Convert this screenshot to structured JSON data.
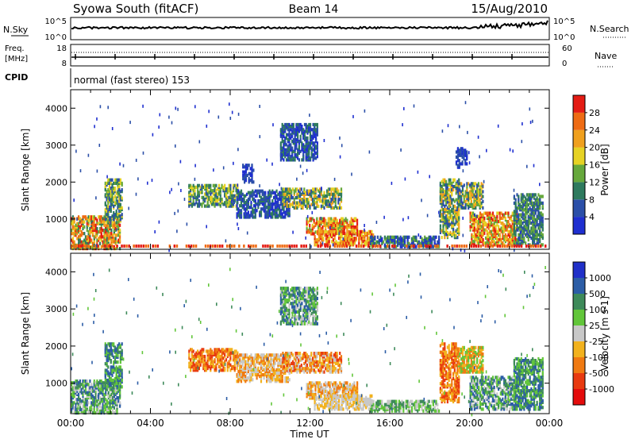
{
  "header": {
    "station": "Syowa South (fitACF)",
    "beam": "Beam 14",
    "date": "15/Aug/2010"
  },
  "strips": {
    "nsky": {
      "label": "N.Sky",
      "top": "10^5",
      "bottom": "10^0"
    },
    "nsearch": {
      "label": "N.Search",
      "top": "10^5",
      "bottom": "10^0"
    },
    "freq": {
      "label1": "Freq.",
      "label2": "[MHz]",
      "top": "18",
      "bottom": "8"
    },
    "nave": {
      "label": "Nave",
      "top": "60",
      "bottom": "0"
    },
    "cpid": {
      "label": "CPID",
      "value": "normal (fast stereo) 153"
    }
  },
  "chart_data": [
    {
      "type": "heatmap",
      "name": "power",
      "ylabel": "Slant Range [km]",
      "ylim": [
        180,
        4500
      ],
      "y_ticks": [
        "1000",
        "2000",
        "3000",
        "4000"
      ],
      "colorbar": {
        "label": "Power [dB]",
        "ticks": [
          "4",
          "8",
          "12",
          "16",
          "20",
          "24",
          "28"
        ],
        "colors": [
          "#1f2fd0",
          "#2b4fa8",
          "#2e7a5e",
          "#66a83c",
          "#e6d224",
          "#f0a01e",
          "#ee6b14",
          "#e41c14"
        ]
      },
      "regions": [
        {
          "t": [
            0.0,
            2.5
          ],
          "r": [
            200,
            1100
          ],
          "levels": [
            2,
            3,
            4,
            5,
            6,
            7
          ]
        },
        {
          "t": [
            1.7,
            2.6
          ],
          "r": [
            900,
            2100
          ],
          "levels": [
            1,
            2,
            3,
            4
          ]
        },
        {
          "t": [
            5.9,
            8.4
          ],
          "r": [
            1350,
            1950
          ],
          "levels": [
            1,
            2,
            3,
            4
          ]
        },
        {
          "t": [
            8.3,
            11.0
          ],
          "r": [
            1050,
            1800
          ],
          "levels": [
            0,
            1,
            2
          ]
        },
        {
          "t": [
            8.6,
            9.2
          ],
          "r": [
            2000,
            2500
          ],
          "levels": [
            0,
            1
          ]
        },
        {
          "t": [
            10.5,
            12.4
          ],
          "r": [
            2600,
            3600
          ],
          "levels": [
            0,
            1,
            2
          ]
        },
        {
          "t": [
            10.6,
            13.6
          ],
          "r": [
            1300,
            1850
          ],
          "levels": [
            1,
            2,
            3,
            4,
            5
          ]
        },
        {
          "t": [
            11.8,
            14.4
          ],
          "r": [
            600,
            1050
          ],
          "levels": [
            3,
            4,
            5,
            6,
            7
          ]
        },
        {
          "t": [
            12.2,
            15.2
          ],
          "r": [
            300,
            700
          ],
          "levels": [
            4,
            5,
            6,
            7
          ]
        },
        {
          "t": [
            15.0,
            18.5
          ],
          "r": [
            250,
            550
          ],
          "levels": [
            0,
            1,
            2,
            3
          ]
        },
        {
          "t": [
            18.5,
            19.5
          ],
          "r": [
            500,
            2100
          ],
          "levels": [
            1,
            2,
            3,
            4,
            5
          ]
        },
        {
          "t": [
            19.3,
            19.9
          ],
          "r": [
            2400,
            2950
          ],
          "levels": [
            0,
            1
          ]
        },
        {
          "t": [
            19.4,
            20.7
          ],
          "r": [
            1300,
            2000
          ],
          "levels": [
            1,
            2,
            3,
            4,
            5
          ]
        },
        {
          "t": [
            20.0,
            22.4
          ],
          "r": [
            300,
            1200
          ],
          "levels": [
            3,
            4,
            5,
            6,
            7
          ]
        },
        {
          "t": [
            22.2,
            23.7
          ],
          "r": [
            300,
            1700
          ],
          "levels": [
            1,
            2,
            3
          ]
        }
      ]
    },
    {
      "type": "heatmap",
      "name": "velocity",
      "ylabel": "Slant Range [km]",
      "xlabel": "Time UT",
      "ylim": [
        180,
        4500
      ],
      "x_ticks": [
        "00:00",
        "04:00",
        "08:00",
        "12:00",
        "16:00",
        "20:00",
        "00:00"
      ],
      "y_ticks": [
        "1000",
        "2000",
        "3000",
        "4000"
      ],
      "colorbar": {
        "label": "Velocity [m s-1]",
        "ticks": [
          "1000",
          "500",
          "100",
          "25",
          "-25",
          "-100",
          "-500",
          "-1000"
        ],
        "colors": [
          "#2030c8",
          "#2c5da6",
          "#3e8a5a",
          "#62c63a",
          "#c8c8c8",
          "#f2b21e",
          "#f07a12",
          "#e83a10",
          "#e40c0c"
        ]
      },
      "regions": [
        {
          "t": [
            0.0,
            2.5
          ],
          "r": [
            200,
            1100
          ],
          "levels": [
            1,
            2,
            3,
            4
          ]
        },
        {
          "t": [
            1.7,
            2.6
          ],
          "r": [
            900,
            2100
          ],
          "levels": [
            1,
            2,
            3
          ]
        },
        {
          "t": [
            5.9,
            8.4
          ],
          "r": [
            1350,
            1950
          ],
          "levels": [
            5,
            6,
            7
          ]
        },
        {
          "t": [
            8.3,
            11.0
          ],
          "r": [
            1050,
            1800
          ],
          "levels": [
            4,
            5,
            6
          ]
        },
        {
          "t": [
            10.5,
            12.4
          ],
          "r": [
            2600,
            3600
          ],
          "levels": [
            1,
            2,
            3,
            4
          ]
        },
        {
          "t": [
            10.6,
            13.6
          ],
          "r": [
            1300,
            1850
          ],
          "levels": [
            4,
            5,
            6,
            7
          ]
        },
        {
          "t": [
            11.8,
            14.4
          ],
          "r": [
            600,
            1050
          ],
          "levels": [
            4,
            5,
            6
          ]
        },
        {
          "t": [
            12.2,
            15.2
          ],
          "r": [
            300,
            700
          ],
          "levels": [
            4,
            5
          ]
        },
        {
          "t": [
            15.0,
            18.5
          ],
          "r": [
            250,
            550
          ],
          "levels": [
            2,
            3,
            4
          ]
        },
        {
          "t": [
            18.5,
            19.5
          ],
          "r": [
            500,
            2100
          ],
          "levels": [
            5,
            6,
            7
          ]
        },
        {
          "t": [
            19.4,
            20.7
          ],
          "r": [
            1300,
            2000
          ],
          "levels": [
            3,
            5,
            6
          ]
        },
        {
          "t": [
            20.0,
            22.4
          ],
          "r": [
            300,
            1200
          ],
          "levels": [
            1,
            2,
            3,
            4
          ]
        },
        {
          "t": [
            22.2,
            23.7
          ],
          "r": [
            300,
            1700
          ],
          "levels": [
            1,
            2,
            3
          ]
        }
      ]
    }
  ]
}
